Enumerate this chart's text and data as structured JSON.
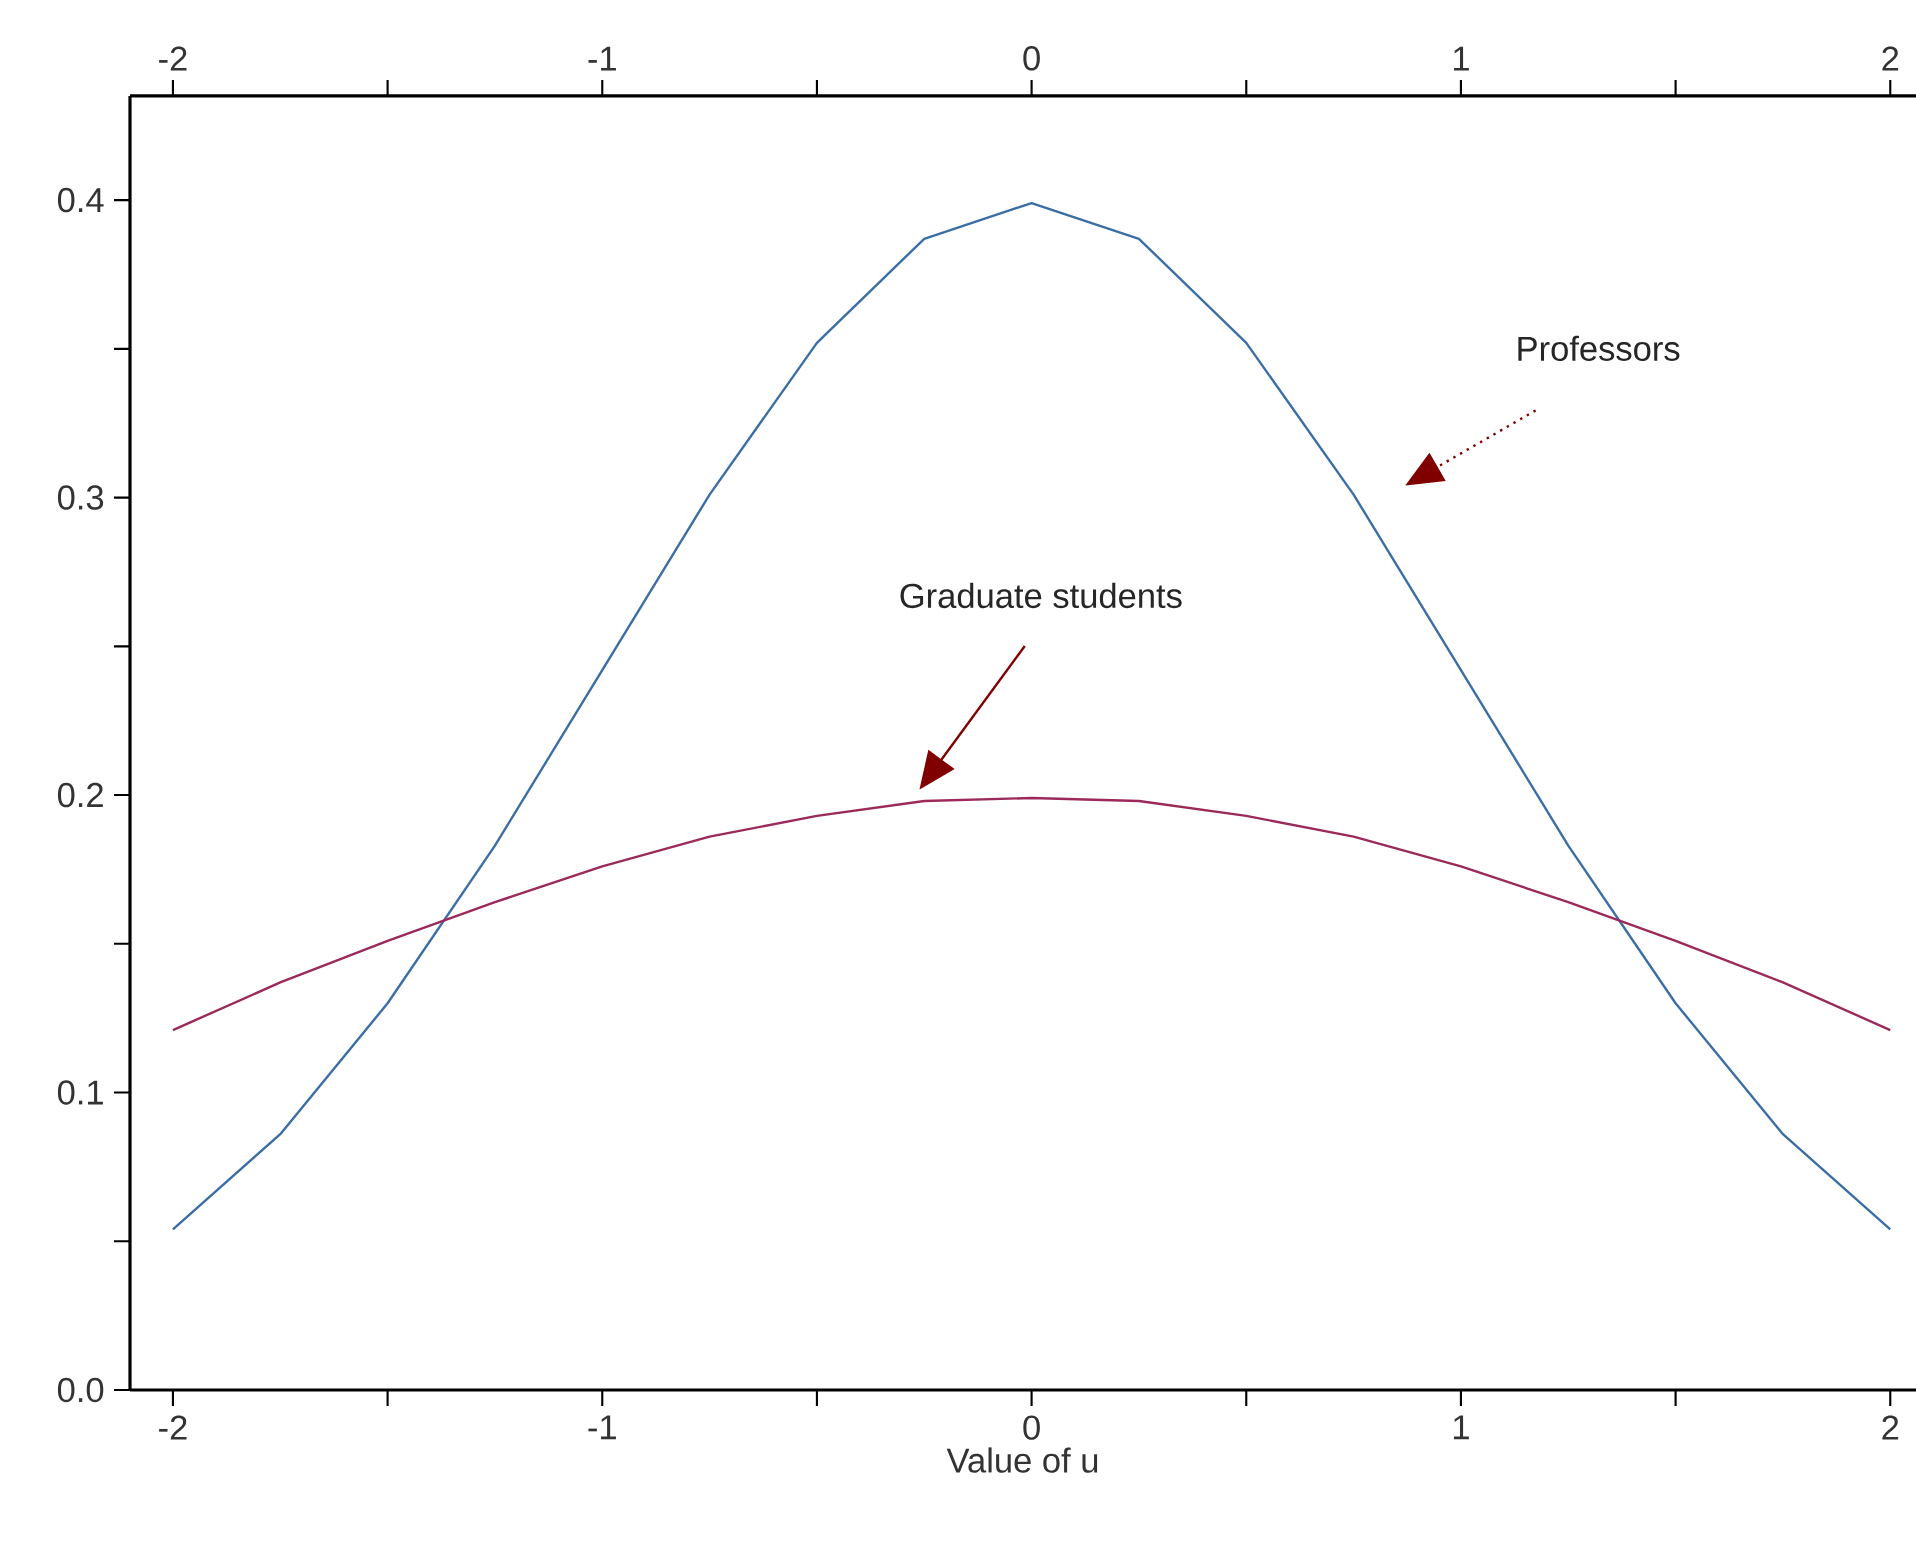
{
  "chart_data": {
    "type": "line",
    "xlabel": "Value of u",
    "x": [
      -2,
      -1.75,
      -1.5,
      -1.25,
      -1,
      -0.75,
      -0.5,
      -0.25,
      0,
      0.25,
      0.5,
      0.75,
      1,
      1.25,
      1.5,
      1.75,
      2
    ],
    "series": [
      {
        "color": "#3a6ea5",
        "values": [
          0.054,
          0.086,
          0.13,
          0.183,
          0.242,
          0.301,
          0.352,
          0.387,
          0.399,
          0.387,
          0.352,
          0.301,
          0.242,
          0.183,
          0.13,
          0.086,
          0.054
        ]
      },
      {
        "color": "#9b2a5a",
        "values": [
          0.121,
          0.137,
          0.151,
          0.164,
          0.176,
          0.186,
          0.193,
          0.198,
          0.199,
          0.198,
          0.193,
          0.186,
          0.176,
          0.164,
          0.151,
          0.137,
          0.121
        ]
      }
    ],
    "xlim": [
      -2.1,
      2.06
    ],
    "ylim": [
      0,
      0.435
    ],
    "xticks": [
      -2,
      {
        "value": -1.5,
        "label": null
      },
      -1,
      {
        "value": -0.5,
        "label": null
      },
      0,
      {
        "value": 0.5,
        "label": null
      },
      1,
      {
        "value": 1.5,
        "label": null
      },
      2
    ],
    "x2lim": [
      -2.1,
      2.06
    ],
    "x2ticks": [
      -2,
      {
        "value": -1.5,
        "label": null
      },
      -1,
      {
        "value": -0.5,
        "label": null
      },
      0,
      {
        "value": 0.5,
        "label": null
      },
      1,
      {
        "value": 1.5,
        "label": null
      },
      2
    ],
    "yticks": [
      {
        "value": 0,
        "label": "0.0"
      },
      {
        "value": 0.05,
        "label": null
      },
      0.1,
      {
        "value": 0.15,
        "label": null
      },
      0.2,
      {
        "value": 0.25,
        "label": null
      },
      0.3,
      {
        "value": 0.35,
        "label": null
      },
      0.4
    ],
    "annotations": [
      "Professors",
      "Graduate students"
    ],
    "grid": false,
    "marker": "none",
    "line_style": "solid"
  }
}
